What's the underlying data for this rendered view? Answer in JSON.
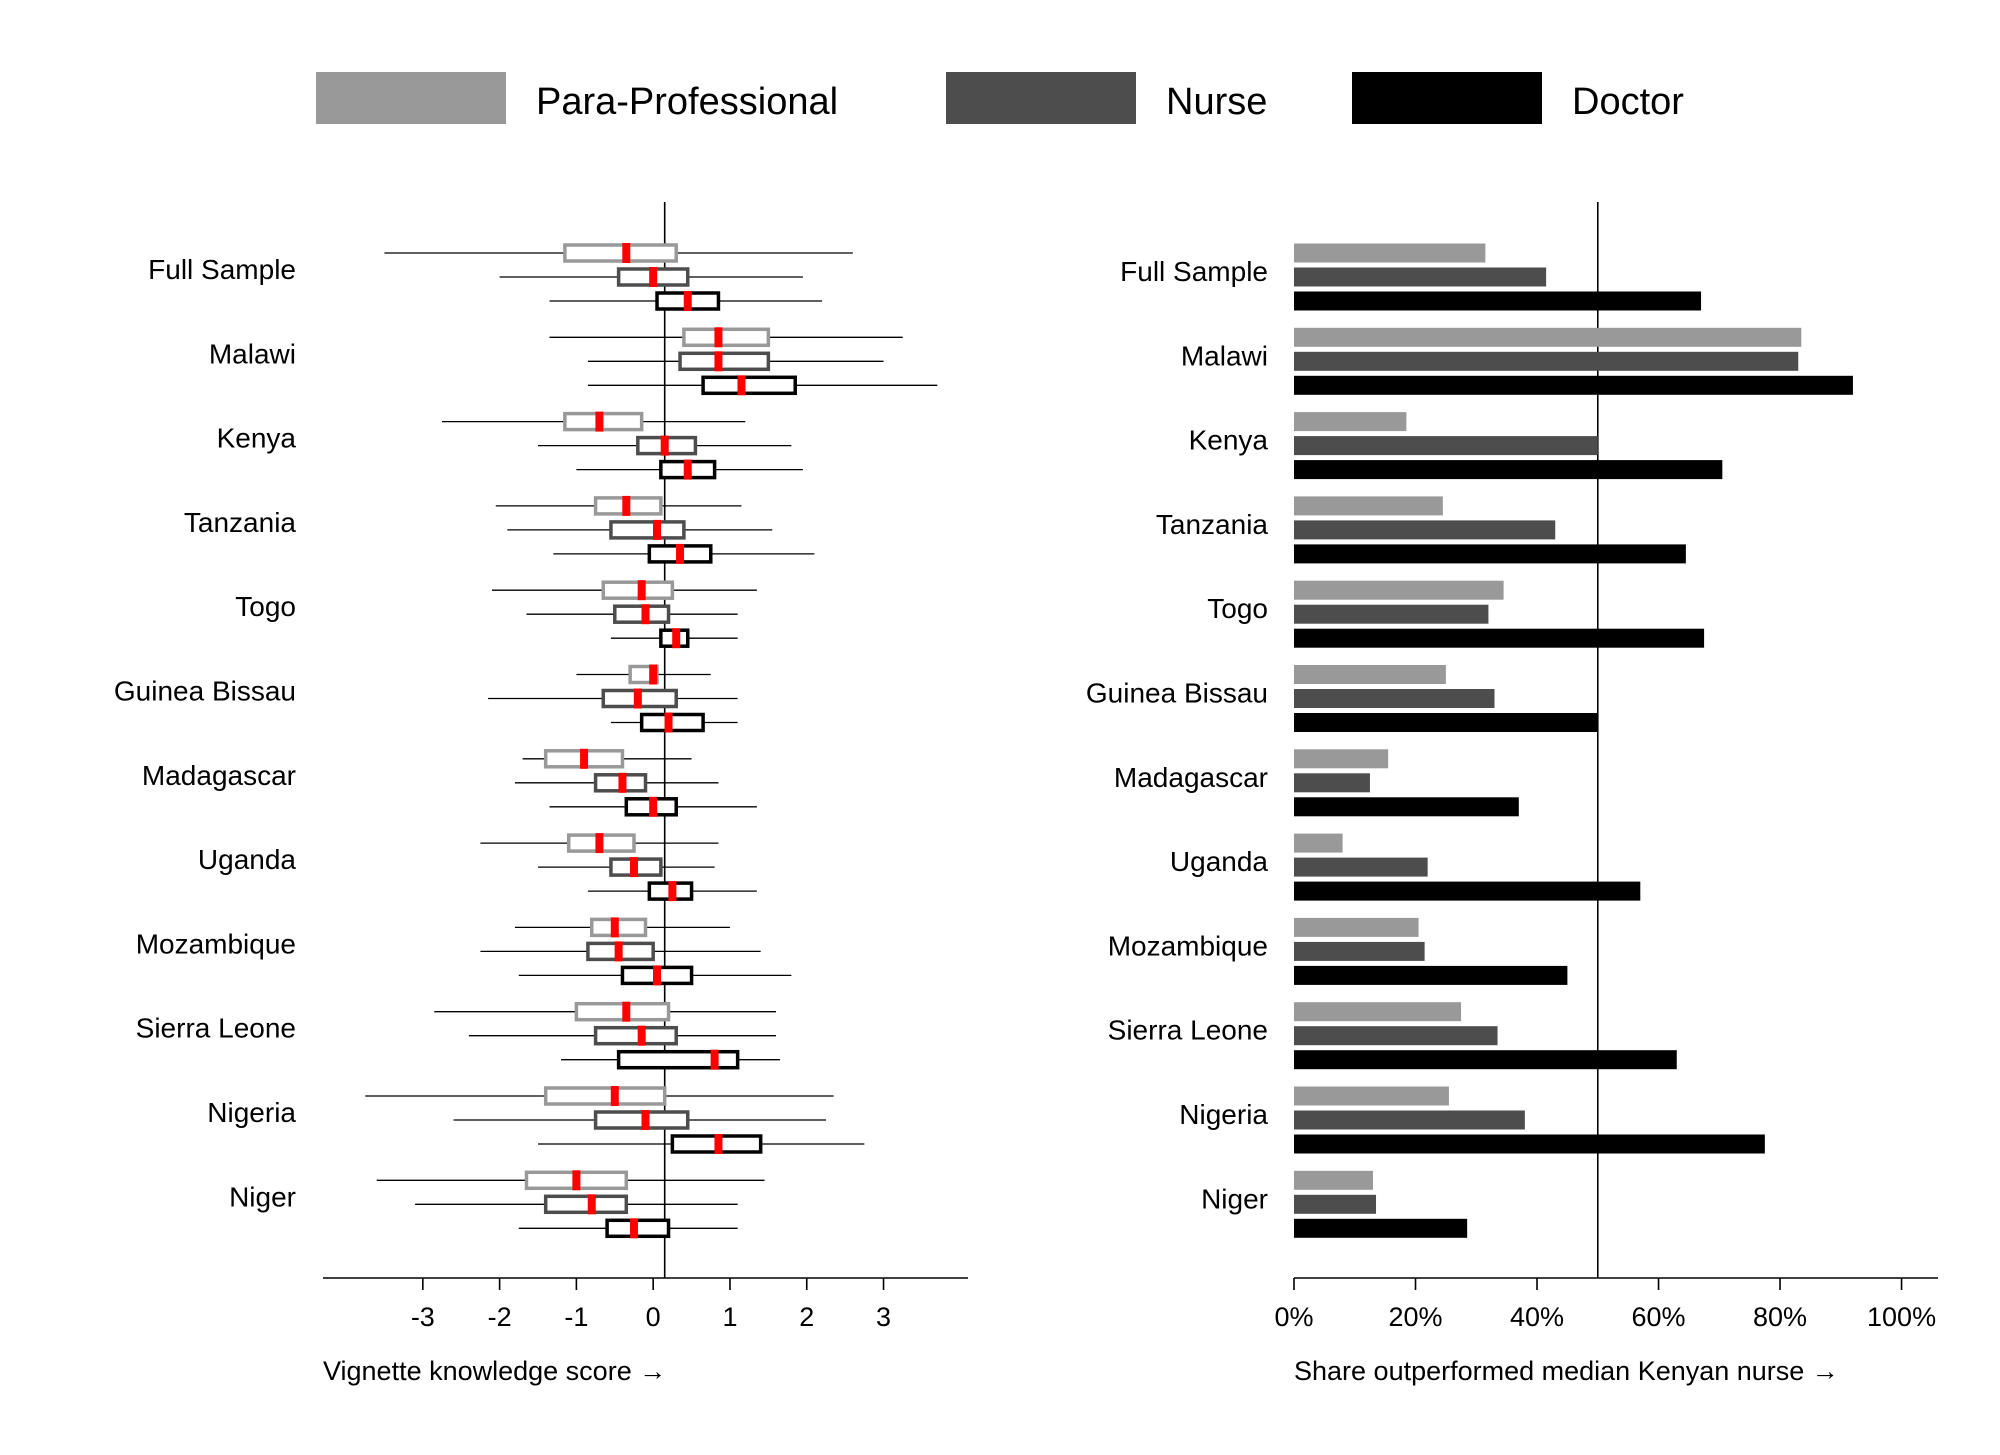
{
  "legend": [
    {
      "name": "Para-Professional",
      "color": "#999999"
    },
    {
      "name": "Nurse",
      "color": "#4d4d4d"
    },
    {
      "name": "Doctor",
      "color": "#000000"
    }
  ],
  "chart_data": [
    {
      "type": "boxplot",
      "xlabel": "Vignette knowledge score →",
      "xlim": [
        -4.3,
        4.1
      ],
      "xticks": [
        -3,
        -2,
        -1,
        0,
        1,
        2,
        3
      ],
      "xtick_labels": [
        "-3",
        "-2",
        "-1",
        "0",
        "1",
        "2",
        "3"
      ],
      "reference_line": 0.15,
      "median_color": "#ff0000",
      "categories": [
        "Full Sample",
        "Malawi",
        "Kenya",
        "Tanzania",
        "Togo",
        "Guinea Bissau",
        "Madagascar",
        "Uganda",
        "Mozambique",
        "Sierra Leone",
        "Nigeria",
        "Niger"
      ],
      "series": [
        {
          "name": "Para-Professional",
          "color": "#999999",
          "boxes": [
            {
              "lo": -3.5,
              "q1": -1.15,
              "med": -0.35,
              "q3": 0.3,
              "hi": 2.6
            },
            {
              "lo": -1.35,
              "q1": 0.4,
              "med": 0.85,
              "q3": 1.5,
              "hi": 3.25
            },
            {
              "lo": -2.75,
              "q1": -1.15,
              "med": -0.7,
              "q3": -0.15,
              "hi": 1.2
            },
            {
              "lo": -2.05,
              "q1": -0.75,
              "med": -0.35,
              "q3": 0.1,
              "hi": 1.15
            },
            {
              "lo": -2.1,
              "q1": -0.65,
              "med": -0.15,
              "q3": 0.25,
              "hi": 1.35
            },
            {
              "lo": -1.0,
              "q1": -0.3,
              "med": 0.0,
              "q3": 0.05,
              "hi": 0.75
            },
            {
              "lo": -1.7,
              "q1": -1.4,
              "med": -0.9,
              "q3": -0.4,
              "hi": 0.5
            },
            {
              "lo": -2.25,
              "q1": -1.1,
              "med": -0.7,
              "q3": -0.25,
              "hi": 0.85
            },
            {
              "lo": -1.8,
              "q1": -0.8,
              "med": -0.5,
              "q3": -0.1,
              "hi": 1.0
            },
            {
              "lo": -2.85,
              "q1": -1.0,
              "med": -0.35,
              "q3": 0.2,
              "hi": 1.6
            },
            {
              "lo": -3.75,
              "q1": -1.4,
              "med": -0.5,
              "q3": 0.15,
              "hi": 2.35
            },
            {
              "lo": -3.6,
              "q1": -1.65,
              "med": -1.0,
              "q3": -0.35,
              "hi": 1.45
            }
          ]
        },
        {
          "name": "Nurse",
          "color": "#4d4d4d",
          "boxes": [
            {
              "lo": -2.0,
              "q1": -0.45,
              "med": 0.0,
              "q3": 0.45,
              "hi": 1.95
            },
            {
              "lo": -0.85,
              "q1": 0.35,
              "med": 0.85,
              "q3": 1.5,
              "hi": 3.0
            },
            {
              "lo": -1.5,
              "q1": -0.2,
              "med": 0.15,
              "q3": 0.55,
              "hi": 1.8
            },
            {
              "lo": -1.9,
              "q1": -0.55,
              "med": 0.05,
              "q3": 0.4,
              "hi": 1.55
            },
            {
              "lo": -1.65,
              "q1": -0.5,
              "med": -0.1,
              "q3": 0.2,
              "hi": 1.1
            },
            {
              "lo": -2.15,
              "q1": -0.65,
              "med": -0.2,
              "q3": 0.3,
              "hi": 1.1
            },
            {
              "lo": -1.8,
              "q1": -0.75,
              "med": -0.4,
              "q3": -0.1,
              "hi": 0.85
            },
            {
              "lo": -1.5,
              "q1": -0.55,
              "med": -0.25,
              "q3": 0.1,
              "hi": 0.8
            },
            {
              "lo": -2.25,
              "q1": -0.85,
              "med": -0.45,
              "q3": 0.0,
              "hi": 1.4
            },
            {
              "lo": -2.4,
              "q1": -0.75,
              "med": -0.15,
              "q3": 0.3,
              "hi": 1.6
            },
            {
              "lo": -2.6,
              "q1": -0.75,
              "med": -0.1,
              "q3": 0.45,
              "hi": 2.25
            },
            {
              "lo": -3.1,
              "q1": -1.4,
              "med": -0.8,
              "q3": -0.35,
              "hi": 1.1
            }
          ]
        },
        {
          "name": "Doctor",
          "color": "#000000",
          "boxes": [
            {
              "lo": -1.35,
              "q1": 0.05,
              "med": 0.45,
              "q3": 0.85,
              "hi": 2.2
            },
            {
              "lo": -0.85,
              "q1": 0.65,
              "med": 1.15,
              "q3": 1.85,
              "hi": 3.7
            },
            {
              "lo": -1.0,
              "q1": 0.1,
              "med": 0.45,
              "q3": 0.8,
              "hi": 1.95
            },
            {
              "lo": -1.3,
              "q1": -0.05,
              "med": 0.35,
              "q3": 0.75,
              "hi": 2.1
            },
            {
              "lo": -0.55,
              "q1": 0.1,
              "med": 0.3,
              "q3": 0.45,
              "hi": 1.1
            },
            {
              "lo": -0.55,
              "q1": -0.15,
              "med": 0.2,
              "q3": 0.65,
              "hi": 1.1
            },
            {
              "lo": -1.35,
              "q1": -0.35,
              "med": 0.0,
              "q3": 0.3,
              "hi": 1.35
            },
            {
              "lo": -0.85,
              "q1": -0.05,
              "med": 0.25,
              "q3": 0.5,
              "hi": 1.35
            },
            {
              "lo": -1.75,
              "q1": -0.4,
              "med": 0.05,
              "q3": 0.5,
              "hi": 1.8
            },
            {
              "lo": -1.2,
              "q1": -0.45,
              "med": 0.8,
              "q3": 1.1,
              "hi": 1.65
            },
            {
              "lo": -1.5,
              "q1": 0.25,
              "med": 0.85,
              "q3": 1.4,
              "hi": 2.75
            },
            {
              "lo": -1.75,
              "q1": -0.6,
              "med": -0.25,
              "q3": 0.2,
              "hi": 1.1
            }
          ]
        }
      ]
    },
    {
      "type": "bar",
      "orientation": "horizontal",
      "xlabel": "Share outperformed median Kenyan nurse →",
      "xlim": [
        0,
        1.06
      ],
      "xticks": [
        0,
        0.2,
        0.4,
        0.6,
        0.8,
        1.0
      ],
      "xtick_labels": [
        "0%",
        "20%",
        "40%",
        "60%",
        "80%",
        "100%"
      ],
      "reference_line": 0.5,
      "categories": [
        "Full Sample",
        "Malawi",
        "Kenya",
        "Tanzania",
        "Togo",
        "Guinea Bissau",
        "Madagascar",
        "Uganda",
        "Mozambique",
        "Sierra Leone",
        "Nigeria",
        "Niger"
      ],
      "series": [
        {
          "name": "Para-Professional",
          "color": "#999999",
          "values": [
            0.315,
            0.835,
            0.185,
            0.245,
            0.345,
            0.25,
            0.155,
            0.08,
            0.205,
            0.275,
            0.255,
            0.13
          ]
        },
        {
          "name": "Nurse",
          "color": "#4d4d4d",
          "values": [
            0.415,
            0.83,
            0.5,
            0.43,
            0.32,
            0.33,
            0.125,
            0.22,
            0.215,
            0.335,
            0.38,
            0.135
          ]
        },
        {
          "name": "Doctor",
          "color": "#000000",
          "values": [
            0.67,
            0.92,
            0.705,
            0.645,
            0.675,
            0.5,
            0.37,
            0.57,
            0.45,
            0.63,
            0.775,
            0.285
          ]
        }
      ]
    }
  ]
}
